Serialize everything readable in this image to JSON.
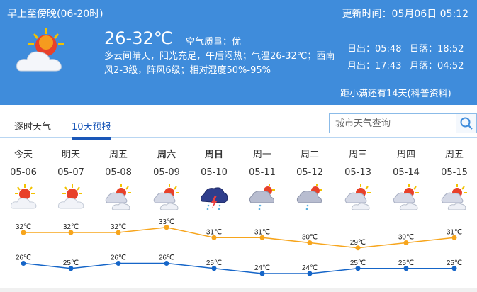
{
  "header": {
    "period": "早上至傍晚(06-20时)",
    "update_time": "更新时间：05月06日 05:12",
    "icon": "partly-sunny-icon",
    "temperature": "26-32℃",
    "air_quality": "空气质量：优",
    "description": "多云间晴天，阳光充足，午后闷热；气温26-32℃；西南风2-3级，阵风6级；相对湿度50%-95%",
    "sunrise": "日出：05:48",
    "sunset": "日落：18:52",
    "moonrise": "月出：17:43",
    "moonset": "月落：04:52",
    "solar_term": "距小满还有14天(科普资料)"
  },
  "tabs": [
    {
      "label": "逐时天气",
      "active": false
    },
    {
      "label": "10天预报",
      "active": true
    }
  ],
  "search": {
    "placeholder": "城市天气查询",
    "icon": "search-icon"
  },
  "colors": {
    "header_bg": "#3f8cdb",
    "high_line": "#f7a51c",
    "low_line": "#1565c8",
    "active_tab": "#1a57b8"
  },
  "forecast": [
    {
      "weekday": "今天",
      "date": "05-06",
      "icon": "sunny-cloud",
      "bold": false
    },
    {
      "weekday": "明天",
      "date": "05-07",
      "icon": "sunny-cloud",
      "bold": false
    },
    {
      "weekday": "周五",
      "date": "05-08",
      "icon": "partly-cloudy",
      "bold": false
    },
    {
      "weekday": "周六",
      "date": "05-09",
      "icon": "partly-cloudy",
      "bold": true
    },
    {
      "weekday": "周日",
      "date": "05-10",
      "icon": "thunderstorm",
      "bold": true
    },
    {
      "weekday": "周一",
      "date": "05-11",
      "icon": "shower",
      "bold": false
    },
    {
      "weekday": "周二",
      "date": "05-12",
      "icon": "shower",
      "bold": false
    },
    {
      "weekday": "周三",
      "date": "05-13",
      "icon": "partly-cloudy",
      "bold": false
    },
    {
      "weekday": "周四",
      "date": "05-14",
      "icon": "partly-cloudy",
      "bold": false
    },
    {
      "weekday": "周五",
      "date": "05-15",
      "icon": "partly-cloudy",
      "bold": false
    }
  ],
  "chart_data": {
    "type": "line",
    "unit": "℃",
    "categories": [
      "05-06",
      "05-07",
      "05-08",
      "05-09",
      "05-10",
      "05-11",
      "05-12",
      "05-13",
      "05-14",
      "05-15"
    ],
    "series": [
      {
        "key": "high",
        "values": [
          32,
          32,
          32,
          33,
          31,
          31,
          30,
          29,
          30,
          31
        ]
      },
      {
        "key": "low",
        "values": [
          26,
          25,
          26,
          26,
          25,
          24,
          24,
          25,
          25,
          25
        ]
      }
    ]
  }
}
